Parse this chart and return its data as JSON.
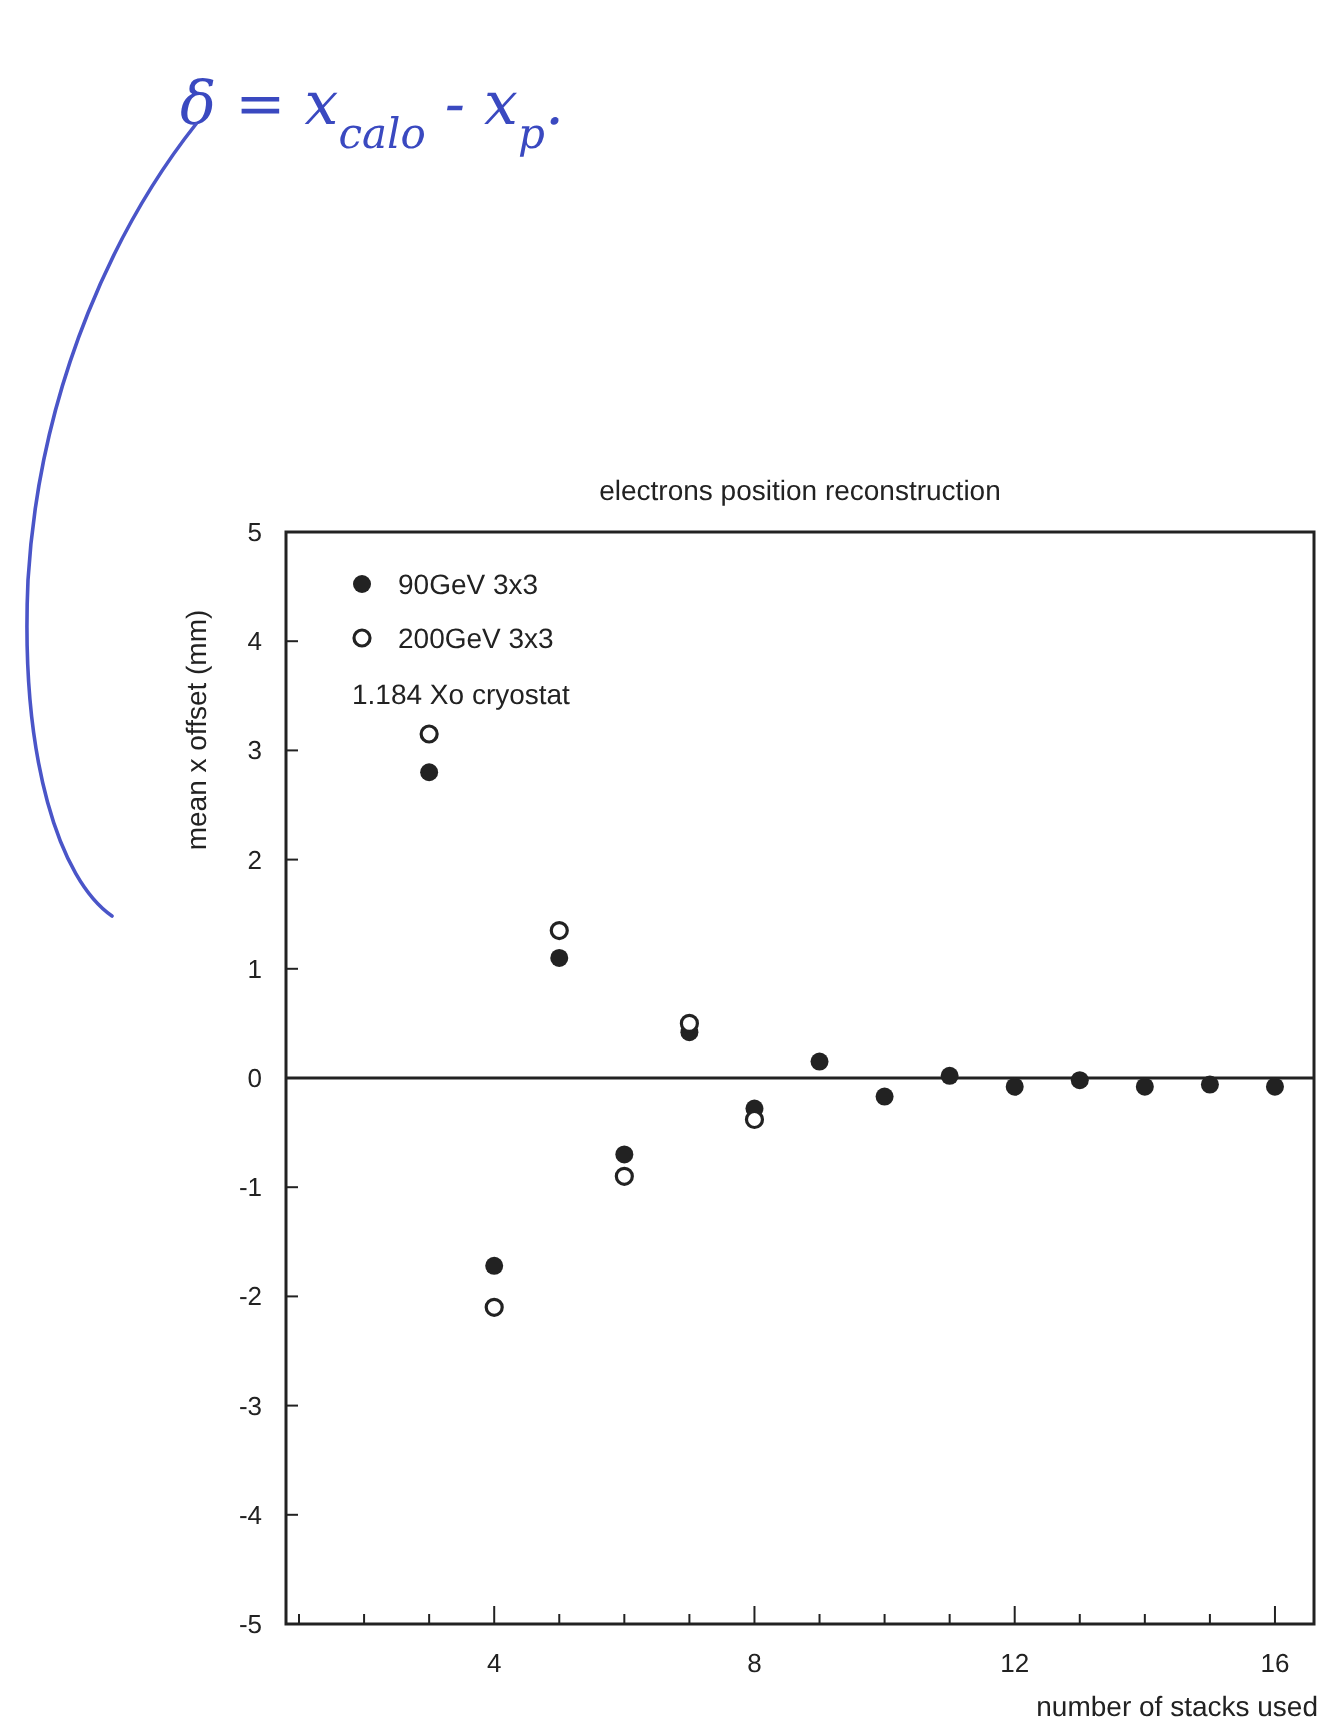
{
  "chart_data": {
    "type": "scatter",
    "title": "electrons position reconstruction",
    "xlabel": "number of stacks used",
    "ylabel": "mean x offset (mm)",
    "x": [
      3,
      4,
      5,
      6,
      7,
      8,
      9,
      10,
      11,
      12,
      13,
      14,
      15,
      16
    ],
    "series": [
      {
        "name": "90GeV 3x3",
        "color": "#222222",
        "marker": "circle",
        "values": [
          2.8,
          -1.72,
          1.1,
          -0.7,
          0.42,
          -0.28,
          0.15,
          -0.17,
          0.02,
          -0.08,
          -0.02,
          -0.08,
          -0.06,
          -0.08
        ]
      },
      {
        "name": "200GeV 3x3",
        "color": "#222222",
        "marker": "open_circle",
        "values": [
          3.15,
          -2.1,
          1.35,
          -0.9,
          0.5,
          -0.38,
          null,
          null,
          null,
          null,
          null,
          null,
          null,
          null
        ]
      }
    ],
    "xlim": [
      0.8,
      16.6
    ],
    "ylim": [
      -5,
      5
    ],
    "xticks": [
      {
        "value": 1,
        "label": null
      },
      {
        "value": 2,
        "label": null
      },
      {
        "value": 3,
        "label": null
      },
      4,
      {
        "value": 5,
        "label": null
      },
      {
        "value": 6,
        "label": null
      },
      {
        "value": 7,
        "label": null
      },
      8,
      {
        "value": 9,
        "label": null
      },
      {
        "value": 10,
        "label": null
      },
      {
        "value": 11,
        "label": null
      },
      12,
      {
        "value": 13,
        "label": null
      },
      {
        "value": 14,
        "label": null
      },
      {
        "value": 15,
        "label": null
      },
      16
    ],
    "yticks": [
      -5,
      -4,
      -3,
      -2,
      -1,
      0,
      1,
      2,
      3,
      4,
      5
    ],
    "ref_lines": [
      {
        "axis": "y",
        "value": 0,
        "color": "#222222"
      }
    ],
    "legend": "top left",
    "grid": false,
    "annotations": [
      "1.184 Xo cryostat",
      "δ = x$_{calo}$ - x$_{p}$."
    ]
  }
}
